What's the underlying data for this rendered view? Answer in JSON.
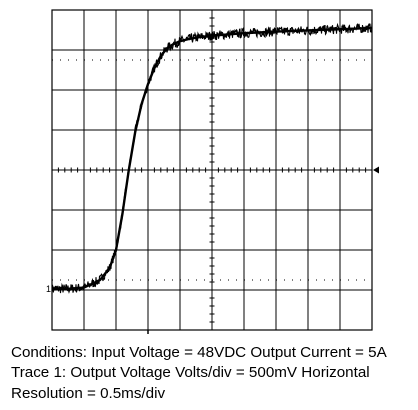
{
  "chart_data": {
    "type": "line",
    "title": "",
    "xlabel": "",
    "ylabel": "",
    "grid": true,
    "x_divisions": 10,
    "y_divisions": 8,
    "x_units": "div",
    "y_units": "div",
    "xlim": [
      0,
      10
    ],
    "ylim": [
      0,
      8
    ],
    "trace_marker": "1",
    "series": [
      {
        "name": "",
        "color": "#000000",
        "noise_band_div": 0.12,
        "x": [
          0,
          0.5,
          1.0,
          1.5,
          1.8,
          2.0,
          2.2,
          2.4,
          2.6,
          2.8,
          3.0,
          3.2,
          3.4,
          3.6,
          3.8,
          4.0,
          4.3,
          4.6,
          5.0,
          5.5,
          6.0,
          7.0,
          8.0,
          9.0,
          10.0
        ],
        "y": [
          1.03,
          1.03,
          1.06,
          1.25,
          1.55,
          2.0,
          2.9,
          4.0,
          4.95,
          5.65,
          6.15,
          6.55,
          6.85,
          7.05,
          7.15,
          7.22,
          7.28,
          7.32,
          7.36,
          7.39,
          7.42,
          7.46,
          7.49,
          7.52,
          7.55
        ]
      }
    ]
  },
  "caption": {
    "line1": "Conditions: Input Voltage = 48VDC Output Current = 5A",
    "line2": "Trace 1: Output Voltage Volts/div = 500mV Horizontal",
    "line3": "Resolution = 0.5ms/div"
  }
}
